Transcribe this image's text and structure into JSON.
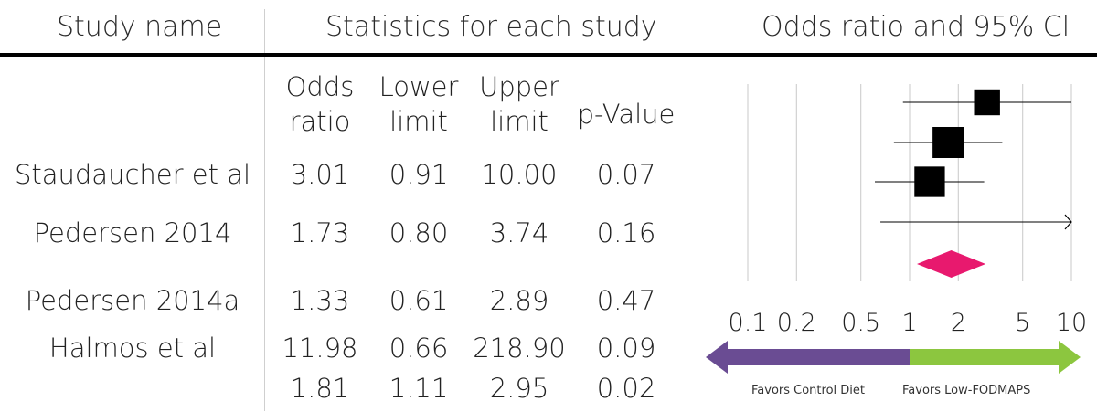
{
  "headers": {
    "study": "Study name",
    "stats": "Statistics for each study",
    "plot": "Odds ratio and 95% Cl"
  },
  "columns": [
    {
      "line1": "Odds",
      "line2": "ratio"
    },
    {
      "line1": "Lower",
      "line2": "limit"
    },
    {
      "line1": "Upper",
      "line2": "limit"
    },
    {
      "line1": "",
      "line2": "p-Value"
    }
  ],
  "rows": [
    {
      "name": "Staudaucher et al",
      "or": "3.01",
      "lower": "0.91",
      "upper": "10.00",
      "p": "0.07"
    },
    {
      "name": "Pedersen 2014",
      "or": "1.73",
      "lower": "0.80",
      "upper": "3.74",
      "p": "0.16"
    },
    {
      "name": "Pedersen 2014a",
      "or": "1.33",
      "lower": "0.61",
      "upper": "2.89",
      "p": "0.47"
    },
    {
      "name": "Halmos et al",
      "or": "11.98",
      "lower": "0.66",
      "upper": "218.90",
      "p": "0.09"
    },
    {
      "name": "",
      "or": "1.81",
      "lower": "1.11",
      "upper": "2.95",
      "p": "0.02"
    }
  ],
  "chart_data": {
    "type": "forest",
    "x_scale": "log",
    "xlim": [
      0.1,
      10
    ],
    "x_ticks": [
      "0.1",
      "0.2",
      "0.5",
      "1",
      "2",
      "5",
      "10"
    ],
    "grid": true,
    "studies": [
      {
        "name": "Staudaucher et al",
        "or": 3.01,
        "lower": 0.91,
        "upper": 10.0,
        "weight": 0.6
      },
      {
        "name": "Pedersen 2014",
        "or": 1.73,
        "lower": 0.8,
        "upper": 3.74,
        "weight": 1.0
      },
      {
        "name": "Pedersen 2014a",
        "or": 1.33,
        "lower": 0.61,
        "upper": 2.89,
        "weight": 0.95
      },
      {
        "name": "Halmos et al",
        "or": 11.98,
        "lower": 0.66,
        "upper": 218.9,
        "weight": 0.0
      }
    ],
    "summary": {
      "or": 1.81,
      "lower": 1.11,
      "upper": 2.95
    },
    "favors_left": "Favors Control Diet",
    "favors_right": "Favors Low-FODMAPS",
    "colors": {
      "summary": "#e8196e",
      "favors_left": "#6a4c93",
      "favors_right": "#8cc63f",
      "marker": "#000000"
    }
  }
}
